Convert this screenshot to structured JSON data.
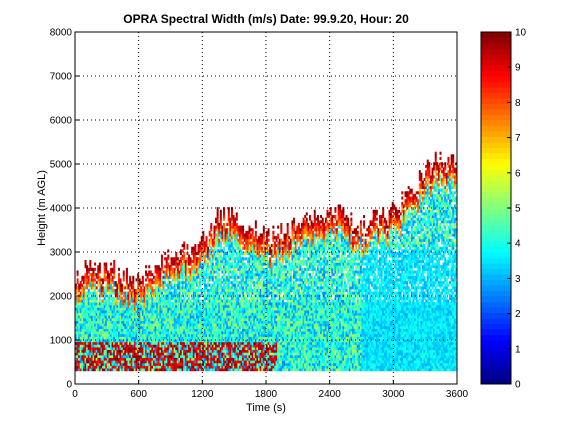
{
  "chart_data": {
    "type": "heatmap",
    "title": "OPRA Spectral Width (m/s)  Date: 99.9.20, Hour: 20",
    "xlabel": "Time (s)",
    "ylabel": "Height (m AGL)",
    "xlim": [
      0,
      3600
    ],
    "ylim": [
      0,
      8000
    ],
    "xticks": [
      "0",
      "600",
      "1200",
      "1800",
      "2400",
      "3000",
      "3600"
    ],
    "yticks": [
      "0",
      "1000",
      "2000",
      "3000",
      "4000",
      "5000",
      "6000",
      "7000",
      "8000"
    ],
    "colorbar": {
      "range": [
        0,
        10
      ],
      "ticks": [
        "0",
        "1",
        "2",
        "3",
        "4",
        "5",
        "6",
        "7",
        "8",
        "9",
        "10"
      ],
      "colormap": "jet"
    },
    "grid": true,
    "grid_style": "dotted",
    "data_top_profile": {
      "description_of_values": "approximate upper height (m) of valid data vs time (s)",
      "time": [
        0,
        300,
        600,
        900,
        1200,
        1350,
        1500,
        1800,
        2100,
        2400,
        2700,
        3000,
        3300,
        3450,
        3600
      ],
      "height": [
        2500,
        2600,
        2300,
        2900,
        3200,
        3800,
        3800,
        3300,
        3600,
        3900,
        3600,
        3900,
        4800,
        5200,
        4800
      ]
    },
    "bottom_height": 300,
    "notes_in_data": {
      "high_width_band": {
        "time": [
          0,
          1900
        ],
        "height": [
          300,
          900
        ],
        "value": 10
      },
      "low_width_region": {
        "time": [
          2700,
          3600
        ],
        "height": [
          300,
          3000
        ],
        "value": 3.5
      },
      "typical_value_mid_layer": 4
    }
  }
}
